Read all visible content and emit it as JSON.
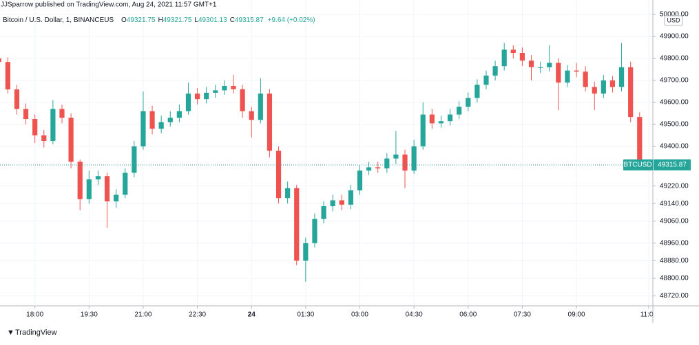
{
  "chart_data": {
    "type": "candlestick",
    "title": "JJSparrow published on TradingView.com, Aug 24, 2021 11:57 GMT+1",
    "subtitle": "Bitcoin / U.S. Dollar, 1, BINANCEUS",
    "legend_values": [
      {
        "key": "O",
        "value": "49321.75"
      },
      {
        "key": "H",
        "value": "49321.75"
      },
      {
        "key": "L",
        "value": "49301.13"
      },
      {
        "key": "C",
        "value": "49315.87"
      }
    ],
    "change": "+9.64 (+0.02%)",
    "currency": "USD",
    "symbol": "BTCUSD",
    "last_price": 49315.87,
    "footer": "TradingView",
    "up_color": "#26a69a",
    "down_color": "#ef5350",
    "grid": true,
    "x": [
      0,
      15,
      30,
      45,
      60,
      75,
      90,
      105,
      120,
      135,
      150,
      165,
      180,
      195,
      210,
      225,
      240,
      255,
      270,
      285,
      300,
      315,
      330,
      345,
      360,
      375,
      390,
      405,
      420,
      435,
      450,
      465,
      480,
      495,
      510,
      525,
      540,
      555,
      570,
      585,
      600,
      615,
      630,
      645,
      660,
      675,
      690,
      705,
      720,
      735,
      750,
      765,
      780,
      795,
      810,
      825,
      840,
      855,
      870,
      885,
      900,
      915,
      930,
      945,
      960,
      975,
      990,
      1005,
      1020,
      1035,
      1050,
      1065
    ],
    "open": [
      49800,
      49784,
      49659,
      49570,
      49525,
      49450,
      49425,
      49570,
      49530,
      49330,
      49160,
      49250,
      49265,
      49150,
      49180,
      49280,
      49400,
      49560,
      49480,
      49510,
      49530,
      49560,
      49640,
      49615,
      49644,
      49655,
      49675,
      49660,
      49560,
      49520,
      49640,
      49380,
      49165,
      49210,
      48880,
      48960,
      49070,
      49128,
      49155,
      49135,
      49200,
      49290,
      49305,
      49300,
      49345,
      49363,
      49290,
      49400,
      49545,
      49505,
      49515,
      49545,
      49580,
      49620,
      49680,
      49722,
      49765,
      49840,
      49825,
      49790,
      49760,
      49760,
      49780,
      49690,
      49745,
      49740,
      49670,
      49640,
      49700,
      49670,
      49760,
      49534
    ],
    "high": [
      49830,
      49805,
      49680,
      49595,
      49545,
      49475,
      49610,
      49590,
      49550,
      49340,
      49290,
      49290,
      49280,
      49205,
      49300,
      49425,
      49650,
      49585,
      49540,
      49560,
      49590,
      49690,
      49665,
      49670,
      49680,
      49700,
      49725,
      49680,
      49580,
      49710,
      49660,
      49400,
      49240,
      49225,
      48985,
      49095,
      49150,
      49180,
      49180,
      49225,
      49315,
      49330,
      49330,
      49370,
      49470,
      49385,
      49430,
      49600,
      49570,
      49540,
      49570,
      49605,
      49645,
      49705,
      49745,
      49790,
      49870,
      49860,
      49850,
      49815,
      49785,
      49860,
      49800,
      49770,
      49780,
      49765,
      49695,
      49725,
      49720,
      49870,
      49785,
      49555
    ],
    "low": [
      49760,
      49640,
      49545,
      49500,
      49415,
      49395,
      49410,
      49505,
      49300,
      49110,
      49140,
      49225,
      49030,
      49120,
      49165,
      49260,
      49385,
      49455,
      49460,
      49490,
      49510,
      49545,
      49590,
      49595,
      49620,
      49635,
      49640,
      49530,
      49440,
      49505,
      49350,
      49140,
      49140,
      48860,
      48785,
      48940,
      49050,
      49105,
      49110,
      49115,
      49180,
      49270,
      49280,
      49280,
      49320,
      49210,
      49275,
      49385,
      49480,
      49485,
      49495,
      49525,
      49560,
      49600,
      49660,
      49700,
      49745,
      49800,
      49765,
      49700,
      49735,
      49740,
      49565,
      49670,
      49715,
      49650,
      49565,
      49620,
      49645,
      49650,
      49510,
      49300
    ],
    "close": [
      49784,
      49659,
      49570,
      49525,
      49450,
      49425,
      49570,
      49530,
      49330,
      49160,
      49250,
      49265,
      49150,
      49180,
      49280,
      49400,
      49560,
      49480,
      49510,
      49530,
      49560,
      49640,
      49615,
      49644,
      49655,
      49675,
      49660,
      49560,
      49520,
      49640,
      49380,
      49165,
      49210,
      48880,
      48960,
      49070,
      49128,
      49155,
      49135,
      49200,
      49290,
      49305,
      49300,
      49345,
      49363,
      49290,
      49400,
      49545,
      49505,
      49515,
      49545,
      49580,
      49620,
      49680,
      49722,
      49765,
      49840,
      49825,
      49790,
      49760,
      49760,
      49780,
      49690,
      49745,
      49740,
      49670,
      49640,
      49700,
      49670,
      49760,
      49534,
      49316
    ],
    "xlim": [
      2,
      1087
    ],
    "xticks": [
      {
        "value": 60,
        "label": "18:00"
      },
      {
        "value": 150,
        "label": "19:30"
      },
      {
        "value": 240,
        "label": "21:00"
      },
      {
        "value": 330,
        "label": "22:30"
      },
      {
        "value": 420,
        "label": "24"
      },
      {
        "value": 510,
        "label": "01:30"
      },
      {
        "value": 600,
        "label": "03:00"
      },
      {
        "value": 690,
        "label": "04:30"
      },
      {
        "value": 780,
        "label": "06:00"
      },
      {
        "value": 870,
        "label": "07:30"
      },
      {
        "value": 960,
        "label": "09:00"
      },
      {
        "value": 1080,
        "label": "11:00"
      }
    ],
    "ylim": [
      48675,
      50022
    ],
    "yticks": [
      {
        "value": 50000,
        "label": "50000.00"
      },
      {
        "value": 49900,
        "label": "49900.00"
      },
      {
        "value": 49800,
        "label": "49800.00"
      },
      {
        "value": 49700,
        "label": "49700.00"
      },
      {
        "value": 49600,
        "label": "49600.00"
      },
      {
        "value": 49500,
        "label": "49500.00"
      },
      {
        "value": 49400,
        "label": "49400.00"
      },
      {
        "value": 49220,
        "label": "49220.00"
      },
      {
        "value": 49140,
        "label": "49140.00"
      },
      {
        "value": 49060,
        "label": "49060.00"
      },
      {
        "value": 48960,
        "label": "48960.00"
      },
      {
        "value": 48880,
        "label": "48880.00"
      },
      {
        "value": 48800,
        "label": "48800.00"
      },
      {
        "value": 48720,
        "label": "48720.00"
      }
    ]
  }
}
